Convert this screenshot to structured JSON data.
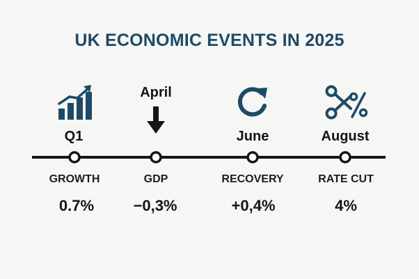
{
  "title": "UK ECONOMIC EVENTS IN 2025",
  "colors": {
    "accent": "#1d4a66",
    "text": "#141414",
    "background": "#f6f6f4"
  },
  "events": [
    {
      "period": "Q1",
      "label": "GROWTH",
      "value": "0.7%",
      "icon": "bar-chart-up-icon"
    },
    {
      "period": "April",
      "label": "GDP",
      "value": "−0,3%",
      "icon": "down-arrow-icon"
    },
    {
      "period": "June",
      "label": "RECOVERY",
      "value": "+0,4%",
      "icon": "circular-arrow-icon"
    },
    {
      "period": "August",
      "label": "RATE CUT",
      "value": "4%",
      "icon": "scissors-percent-icon"
    }
  ]
}
